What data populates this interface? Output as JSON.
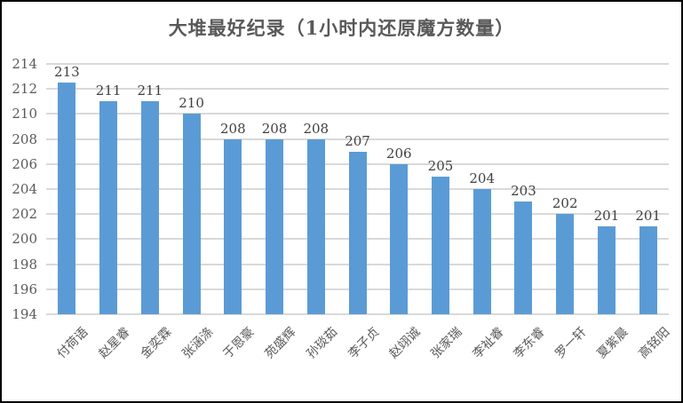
{
  "title": "大堆最好纪录（1小时内还原魔方数量）",
  "colors": {
    "bar": "#5B9BD5",
    "gridline": "#D9D9D9",
    "axis_text": "#595959",
    "data_label": "#404040",
    "title_text": "#595959",
    "frame_border": "#000000",
    "background": "#FFFFFF"
  },
  "chart_data": {
    "type": "bar",
    "title": "大堆最好纪录（1小时内还原魔方数量）",
    "categories": [
      "付荷语",
      "赵星睿",
      "金奕霖",
      "张涵涤",
      "于恩豪",
      "苑盛辉",
      "孙琰茹",
      "李子贞",
      "赵翊诚",
      "张家瑞",
      "李祉睿",
      "李东睿",
      "罗一轩",
      "夏紫晨",
      "高铭阳"
    ],
    "values": [
      213,
      211,
      211,
      210,
      208,
      208,
      208,
      207,
      206,
      205,
      204,
      203,
      202,
      201,
      201
    ],
    "data_labels": [
      "213",
      "211",
      "211",
      "210",
      "208",
      "208",
      "208",
      "207",
      "206",
      "205",
      "204",
      "203",
      "202",
      "201",
      "201"
    ],
    "yticks": [
      214,
      212,
      210,
      208,
      206,
      204,
      202,
      200,
      198,
      196,
      194
    ],
    "ylim": [
      194,
      214
    ],
    "xlabel": "",
    "ylabel": "",
    "grid": true,
    "legend": false,
    "x_label_rotation_deg": -45
  }
}
